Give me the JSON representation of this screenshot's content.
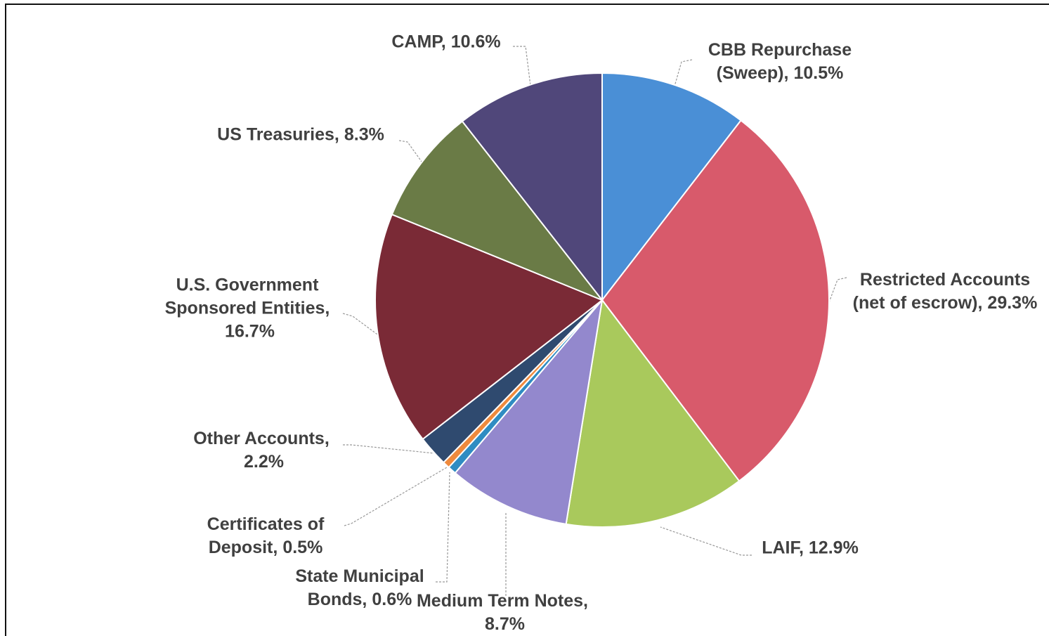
{
  "chart_data": {
    "type": "pie",
    "categories": [
      "CBB Repurchase (Sweep),",
      "Restricted Accounts (net of escrow),",
      "LAIF,",
      "Medium Term Notes,",
      "State Municipal Bonds,",
      "Certificates of Deposit,",
      "Other Accounts,",
      "U.S. Government Sponsored Entities,",
      "US Treasuries,",
      "CAMP,"
    ],
    "values": [
      10.5,
      29.3,
      12.9,
      8.7,
      0.6,
      0.5,
      2.2,
      16.7,
      8.3,
      10.6
    ],
    "value_labels": [
      "10.5%",
      "29.3%",
      "12.9%",
      "8.7%",
      "0.6%",
      "0.5%",
      "2.2%",
      "16.7%",
      "8.3%",
      "10.6%"
    ],
    "colors": [
      "#4a8fd6",
      "#d85a6b",
      "#a9c95c",
      "#9388cd",
      "#2f8cc2",
      "#ef8a3d",
      "#2f4a6f",
      "#7a2a36",
      "#6a7b46",
      "#50477a"
    ]
  }
}
